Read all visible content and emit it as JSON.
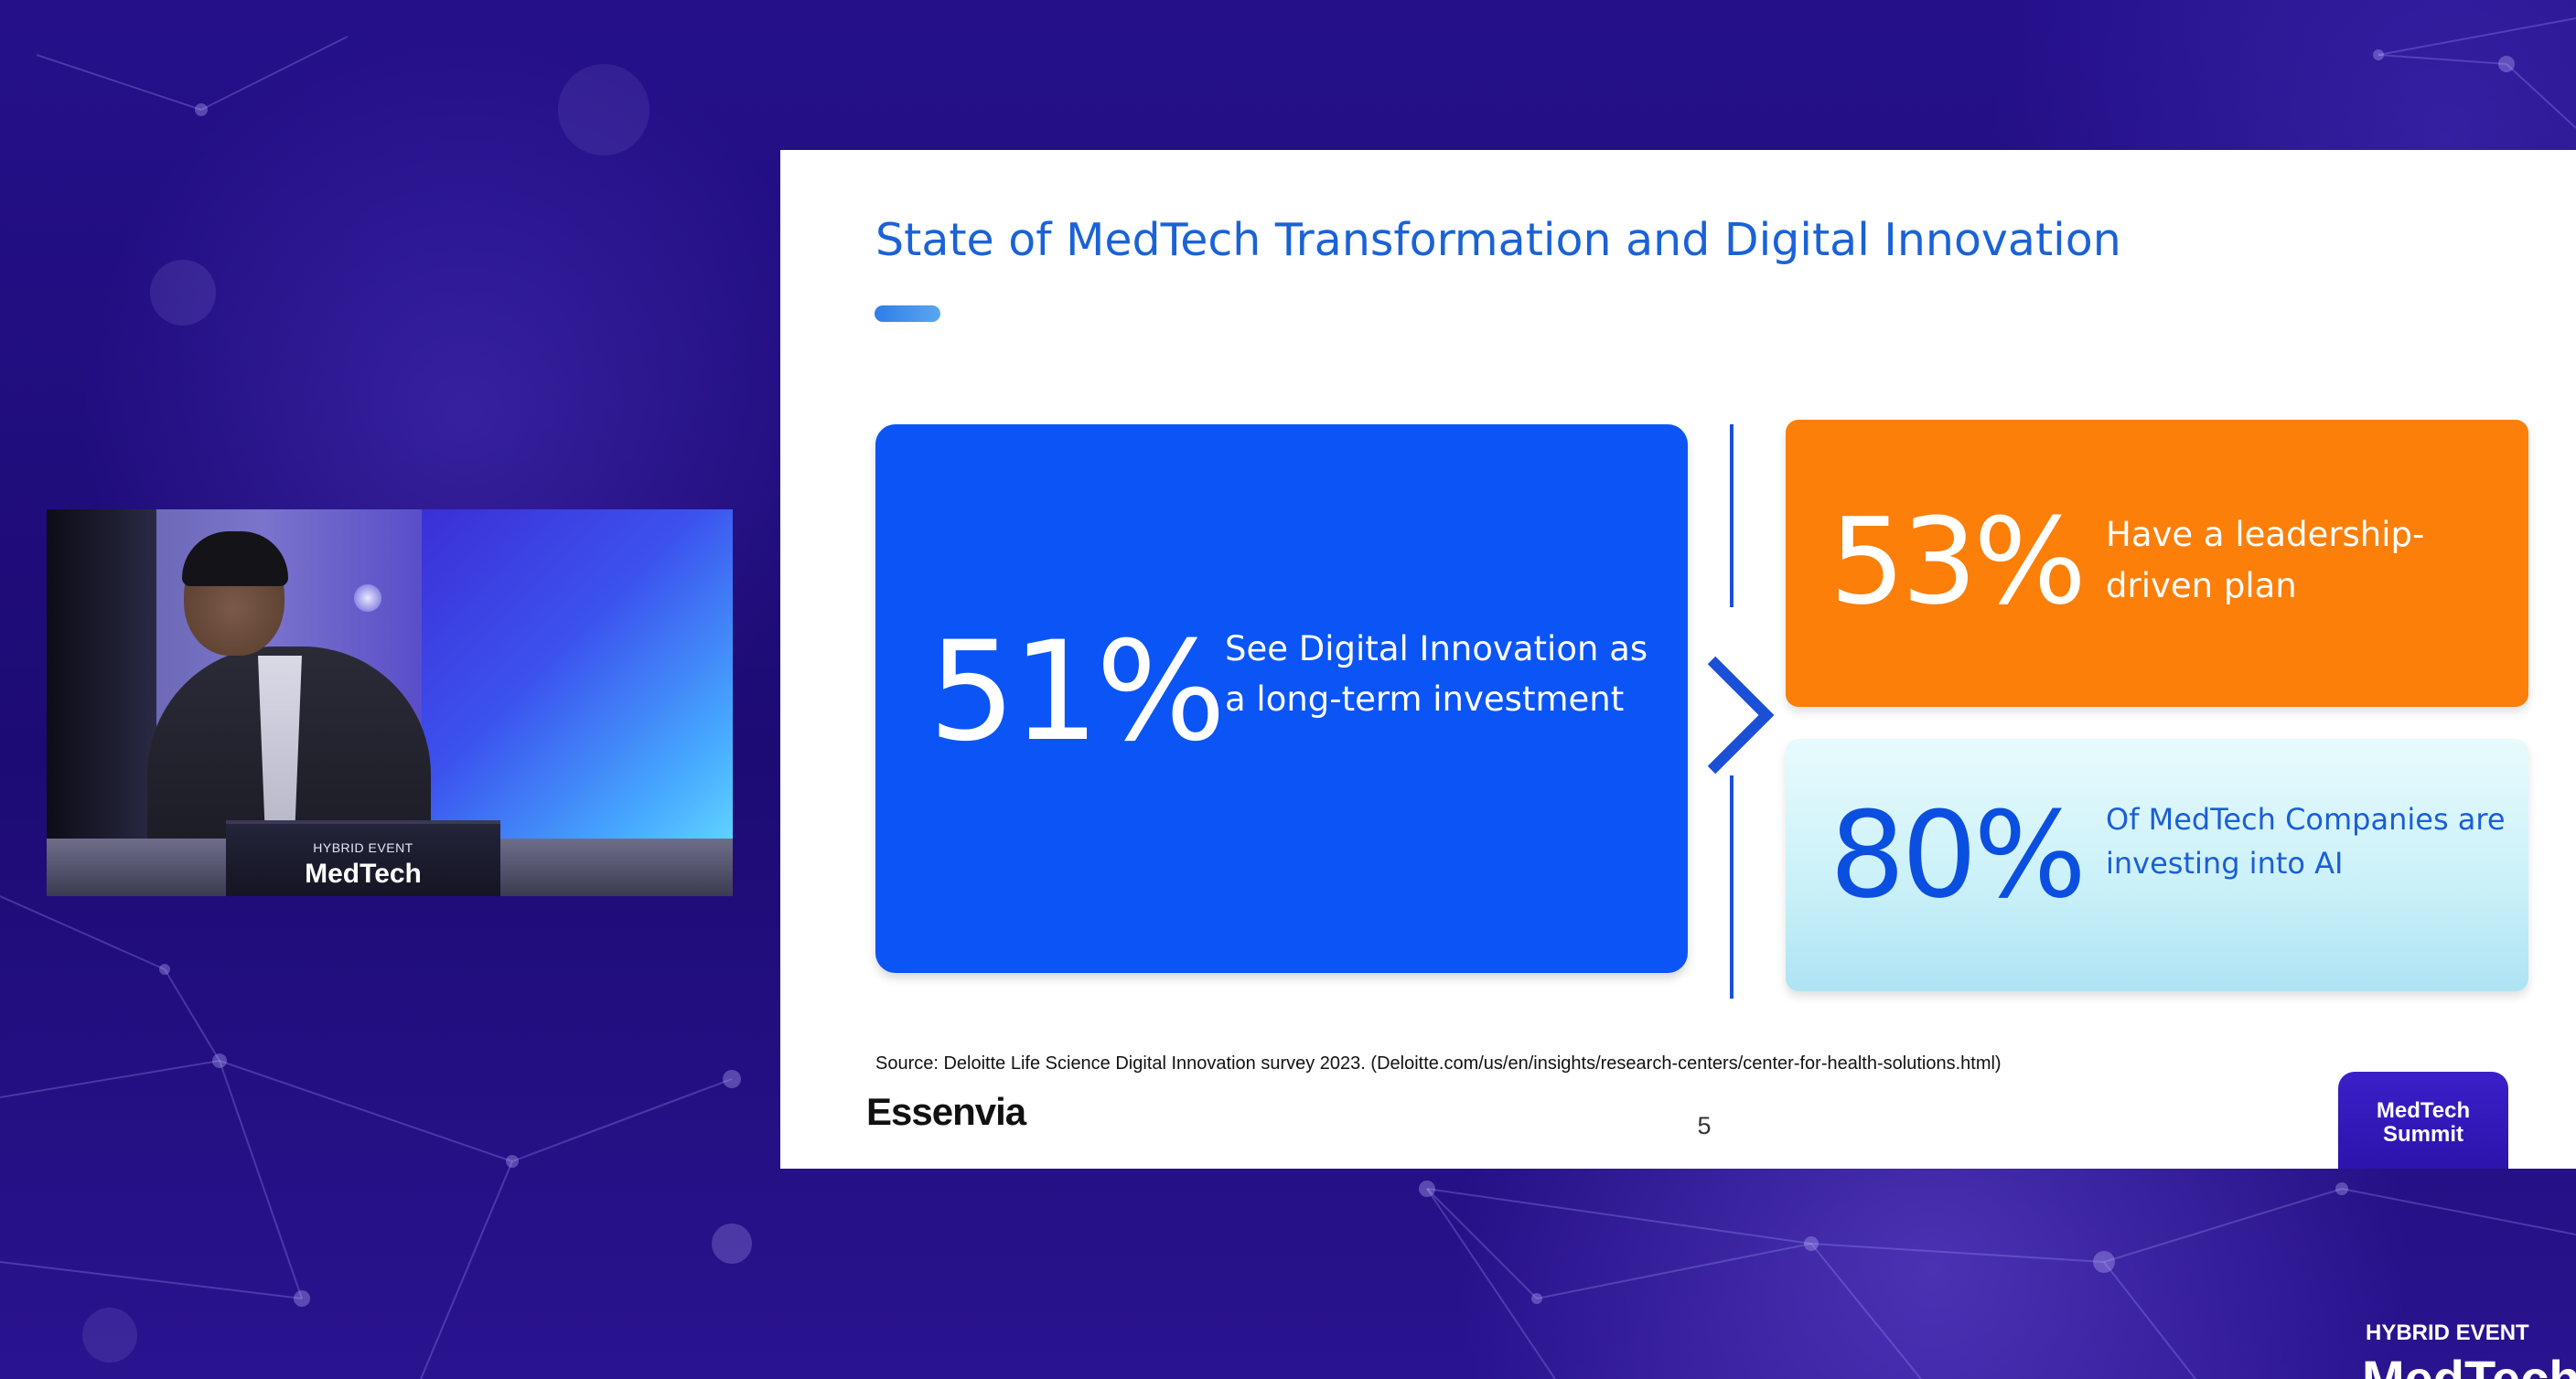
{
  "slide": {
    "title": "State of MedTech Transformation and Digital Innovation",
    "stats": [
      {
        "value": "51%",
        "text": "See Digital Innovation as a long-term investment"
      },
      {
        "value": "53%",
        "text": "Have a leadership-driven plan"
      },
      {
        "value": "80%",
        "text": "Of MedTech Companies are investing into AI"
      }
    ],
    "source": "Source: Deloitte Life Science Digital Innovation survey 2023. (Deloitte.com/us/en/insights/research-centers/center-for-health-solutions.html)",
    "logo": "Essenvia",
    "page_number": "5",
    "badge": "MedTech Summit"
  },
  "video": {
    "podium_label": "HYBRID EVENT",
    "podium_brand": "MedTech"
  },
  "event": {
    "label": "HYBRID EVENT",
    "brand": "MedTech"
  },
  "colors": {
    "background": "#1e0a6e",
    "title_blue": "#1a62d6",
    "main_card": "#0b55f6",
    "orange_card": "#fb7f09",
    "light_card": "#c9f0f8"
  },
  "icons": [
    "chevron-right-icon"
  ]
}
